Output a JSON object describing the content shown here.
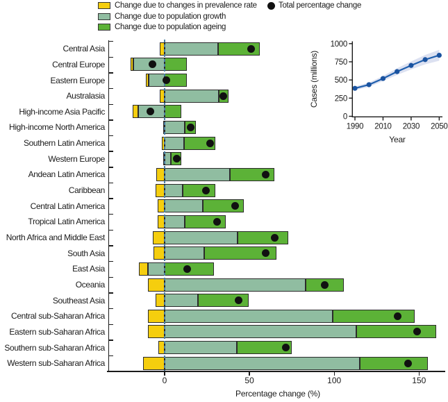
{
  "colors": {
    "prevalence": "#F5CE0E",
    "growth": "#90BDA1",
    "ageing": "#5CB237",
    "total_dot": "#111111",
    "zero_line": "#4A7FA3",
    "inset_line": "#1F5FAD",
    "inset_marker": "#1A53A0",
    "inset_band": "#DCE1F1",
    "axis": "#1A1A1A"
  },
  "legend": {
    "items": [
      {
        "label": "Change due to changes in prevalence rate",
        "color_key": "prevalence"
      },
      {
        "label": "Change due to population growth",
        "color_key": "growth"
      },
      {
        "label": "Change due to population ageing",
        "color_key": "ageing"
      }
    ],
    "total": {
      "label": "Total percentage change"
    }
  },
  "chart_data": [
    {
      "type": "bar",
      "orientation": "horizontal",
      "xlabel": "Percentage change (%)",
      "xticks": [
        0,
        50,
        100,
        150
      ],
      "xlim": [
        -33,
        165
      ],
      "zero_line": true,
      "categories": [
        "Central Asia",
        "Central Europe",
        "Eastern Europe",
        "Australasia",
        "High-income Asia Pacific",
        "High-income North America",
        "Southern Latin America",
        "Western Europe",
        "Andean Latin America",
        "Caribbean",
        "Central Latin America",
        "Tropical Latin America",
        "North Africa and Middle East",
        "South Asia",
        "East Asia",
        "Oceania",
        "Southeast Asia",
        "Central sub-Saharan Africa",
        "Eastern sub-Saharan Africa",
        "Southern sub-Saharan Africa",
        "Western sub-Saharan Africa"
      ],
      "series": [
        {
          "name": "Change due to changes in prevalence rate",
          "color_key": "prevalence",
          "values": [
            -3,
            -1.5,
            -1.5,
            -3,
            -3.5,
            -1,
            -1.5,
            -1,
            -5,
            -5.5,
            -4,
            -4,
            -7,
            -6.5,
            -5,
            -10,
            -5.5,
            -10,
            -10,
            -3.5,
            -12.5
          ]
        },
        {
          "name": "Change due to population growth",
          "color_key": "growth",
          "values": [
            31.5,
            -18.5,
            -9.5,
            32,
            -15.5,
            12,
            11.5,
            3.5,
            38.5,
            10.5,
            22.5,
            12,
            43,
            23.5,
            -10,
            83,
            19.5,
            99,
            113,
            42.5,
            115
          ]
        },
        {
          "name": "Change due to population ageing",
          "color_key": "ageing",
          "values": [
            24.5,
            13,
            13,
            5.5,
            10,
            6.5,
            18.5,
            6.5,
            26,
            19.5,
            24,
            24,
            30,
            42.5,
            29,
            22.5,
            30,
            48.5,
            47,
            32.5,
            40
          ]
        }
      ],
      "totals": {
        "name": "Total percentage change",
        "values": [
          51,
          -7,
          1,
          34.5,
          -8.5,
          15.5,
          27,
          7,
          59.5,
          24.5,
          41.5,
          31,
          65,
          59.5,
          13.5,
          94.5,
          43.5,
          137.5,
          149,
          71.5,
          143.5
        ]
      }
    },
    {
      "type": "line",
      "xlabel": "Year",
      "ylabel": "Cases (millions)",
      "x": [
        1990,
        2000,
        2010,
        2020,
        2030,
        2040,
        2050
      ],
      "series": [
        {
          "name": "Cases",
          "values": [
            385,
            435,
            520,
            615,
            700,
            780,
            840
          ],
          "band_lower": [
            360,
            405,
            485,
            570,
            645,
            715,
            765
          ],
          "band_upper": [
            410,
            465,
            555,
            660,
            755,
            845,
            915
          ]
        }
      ],
      "xticks": [
        1990,
        2010,
        2030,
        2050
      ],
      "yticks": [
        0,
        250,
        500,
        750,
        1000
      ],
      "xlim": [
        1990,
        2050
      ],
      "ylim": [
        0,
        1000
      ]
    }
  ]
}
